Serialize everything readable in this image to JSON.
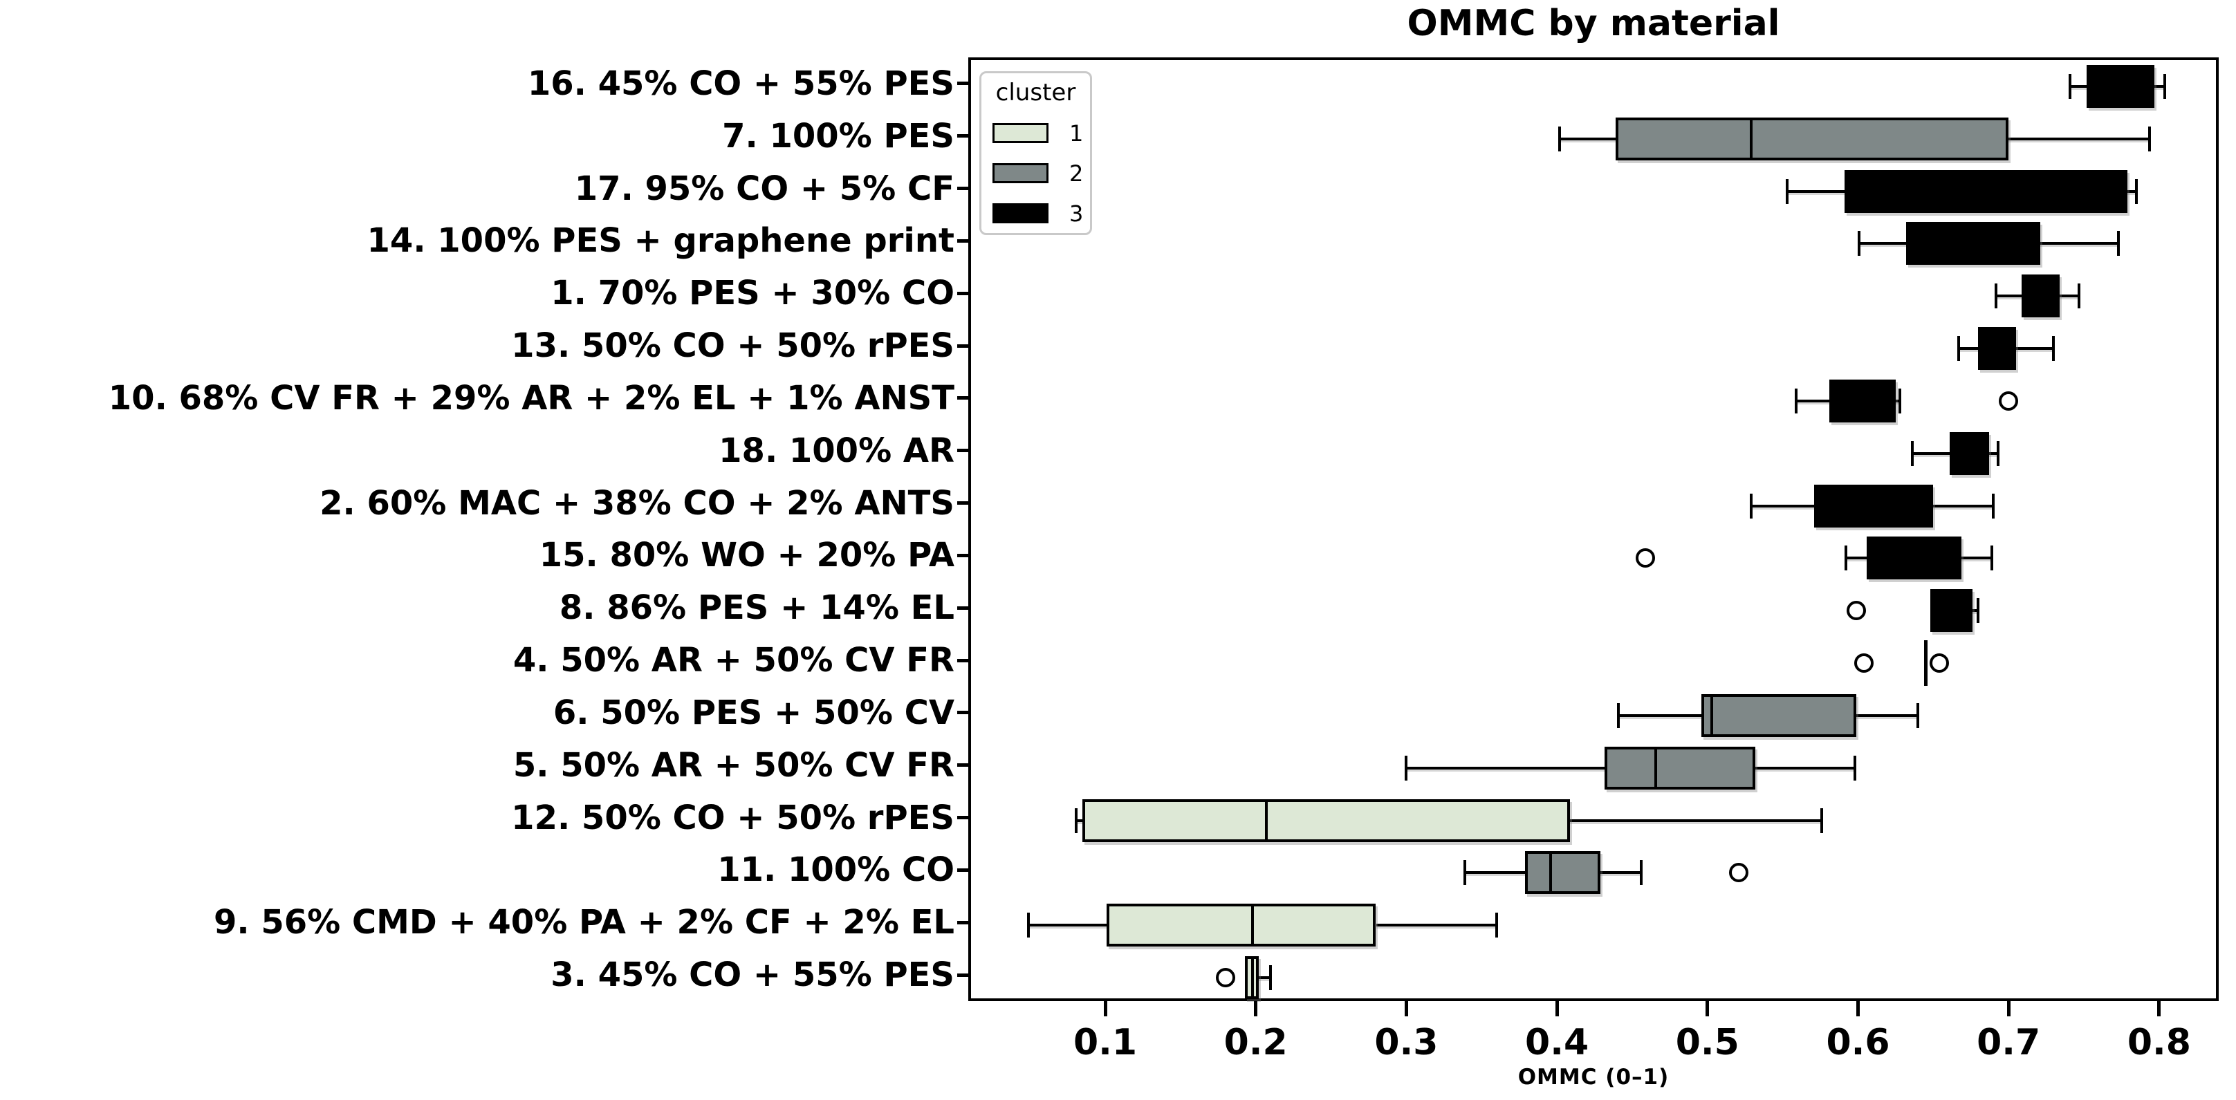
{
  "title": "OMMC by material",
  "xlabel": "OMMC (0–1)",
  "legend": {
    "title": "cluster",
    "entries": [
      {
        "label": "1",
        "color": "#dde8d6"
      },
      {
        "label": "2",
        "color": "#7f8888"
      },
      {
        "label": "3",
        "color": "#000000"
      }
    ]
  },
  "axis": {
    "xticks": [
      {
        "value": 0.1,
        "label": "0.1"
      },
      {
        "value": 0.2,
        "label": "0.2"
      },
      {
        "value": 0.3,
        "label": "0.3"
      },
      {
        "value": 0.4,
        "label": "0.4"
      },
      {
        "value": 0.5,
        "label": "0.5"
      },
      {
        "value": 0.6,
        "label": "0.6"
      },
      {
        "value": 0.7,
        "label": "0.7"
      },
      {
        "value": 0.8,
        "label": "0.8"
      }
    ]
  },
  "chart_data": {
    "type": "boxplot-horizontal",
    "title": "OMMC by material",
    "xlabel": "OMMC (0–1)",
    "xlim": [
      0.069,
      0.84
    ],
    "grid": false,
    "legend_position": "upper left",
    "cluster_colors": {
      "1": "#dde8d6",
      "2": "#7f8888",
      "3": "#000000"
    },
    "rows": [
      {
        "label": "16. 45% CO + 55% PES",
        "cluster": 3,
        "whislo": 0.739,
        "q1": 0.75,
        "med": 0.775,
        "q3": 0.795,
        "whishi": 0.802,
        "fliers": []
      },
      {
        "label": "7. 100% PES",
        "cluster": 2,
        "whislo": 0.4,
        "q1": 0.437,
        "med": 0.527,
        "q3": 0.698,
        "whishi": 0.792,
        "fliers": []
      },
      {
        "label": "17. 95% CO + 5% CF",
        "cluster": 3,
        "whislo": 0.551,
        "q1": 0.589,
        "med": 0.683,
        "q3": 0.777,
        "whishi": 0.783,
        "fliers": []
      },
      {
        "label": "14. 100% PES + graphene print",
        "cluster": 3,
        "whislo": 0.599,
        "q1": 0.63,
        "med": 0.672,
        "q3": 0.719,
        "whishi": 0.771,
        "fliers": []
      },
      {
        "label": "1. 70% PES + 30% CO",
        "cluster": 3,
        "whislo": 0.69,
        "q1": 0.707,
        "med": 0.721,
        "q3": 0.732,
        "whishi": 0.745,
        "fliers": []
      },
      {
        "label": "13. 50% CO + 50% rPES",
        "cluster": 3,
        "whislo": 0.665,
        "q1": 0.678,
        "med": 0.69,
        "q3": 0.703,
        "whishi": 0.728,
        "fliers": []
      },
      {
        "label": "10. 68% CV FR + 29% AR + 2% EL + 1% ANST",
        "cluster": 3,
        "whislo": 0.557,
        "q1": 0.579,
        "med": 0.601,
        "q3": 0.623,
        "whishi": 0.626,
        "fliers": [
          0.698
        ]
      },
      {
        "label": "18. 100% AR",
        "cluster": 3,
        "whislo": 0.634,
        "q1": 0.659,
        "med": 0.672,
        "q3": 0.685,
        "whishi": 0.691,
        "fliers": []
      },
      {
        "label": "2. 60% MAC + 38% CO + 2% ANTS",
        "cluster": 3,
        "whislo": 0.527,
        "q1": 0.569,
        "med": 0.609,
        "q3": 0.648,
        "whishi": 0.688,
        "fliers": []
      },
      {
        "label": "15. 80% WO + 20% PA",
        "cluster": 3,
        "whislo": 0.59,
        "q1": 0.604,
        "med": 0.636,
        "q3": 0.667,
        "whishi": 0.687,
        "fliers": [
          0.457
        ]
      },
      {
        "label": "8. 86% PES + 14% EL",
        "cluster": 3,
        "whislo": 0.646,
        "q1": 0.646,
        "med": 0.66,
        "q3": 0.674,
        "whishi": 0.678,
        "fliers": [
          0.597
        ]
      },
      {
        "label": "4. 50% AR + 50% CV FR",
        "cluster": 3,
        "whislo": 0.643,
        "q1": 0.643,
        "med": 0.643,
        "q3": 0.643,
        "whishi": 0.643,
        "fliers": [
          0.602,
          0.652
        ]
      },
      {
        "label": "6. 50% PES + 50% CV",
        "cluster": 2,
        "whislo": 0.439,
        "q1": 0.494,
        "med": 0.501,
        "q3": 0.597,
        "whishi": 0.638,
        "fliers": []
      },
      {
        "label": "5. 50% AR + 50% CV FR",
        "cluster": 2,
        "whislo": 0.298,
        "q1": 0.43,
        "med": 0.464,
        "q3": 0.53,
        "whishi": 0.596,
        "fliers": []
      },
      {
        "label": "12. 50% CO + 50% rPES",
        "cluster": 1,
        "whislo": 0.079,
        "q1": 0.083,
        "med": 0.205,
        "q3": 0.407,
        "whishi": 0.574,
        "fliers": []
      },
      {
        "label": "11. 100% CO",
        "cluster": 2,
        "whislo": 0.337,
        "q1": 0.377,
        "med": 0.394,
        "q3": 0.427,
        "whishi": 0.454,
        "fliers": [
          0.519
        ]
      },
      {
        "label": "9. 56% CMD + 40% PA + 2% CF + 2% EL",
        "cluster": 1,
        "whislo": 0.047,
        "q1": 0.099,
        "med": 0.196,
        "q3": 0.278,
        "whishi": 0.358,
        "fliers": []
      },
      {
        "label": "3. 45% CO + 55% PES",
        "cluster": 1,
        "whislo": 0.191,
        "q1": 0.191,
        "med": 0.196,
        "q3": 0.2,
        "whishi": 0.208,
        "fliers": [
          0.178
        ]
      }
    ]
  }
}
